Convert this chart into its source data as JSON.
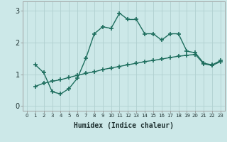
{
  "xlabel": "Humidex (Indice chaleur)",
  "bg_color": "#cce8e8",
  "line_color": "#1e6e5e",
  "grid_color": "#b0d0d0",
  "xlim": [
    -0.5,
    23.5
  ],
  "ylim": [
    -0.15,
    3.3
  ],
  "yticks": [
    0,
    1,
    2,
    3
  ],
  "xticks": [
    0,
    1,
    2,
    3,
    4,
    5,
    6,
    7,
    8,
    9,
    10,
    11,
    12,
    13,
    14,
    15,
    16,
    17,
    18,
    19,
    20,
    21,
    22,
    23
  ],
  "curve1_x": [
    1,
    2,
    3,
    4,
    5,
    6,
    7,
    8,
    9,
    10,
    11,
    12,
    13,
    14,
    15,
    16,
    17,
    18,
    19,
    20,
    21,
    22,
    23
  ],
  "curve1_y": [
    1.3,
    1.05,
    0.45,
    0.38,
    0.55,
    0.88,
    1.5,
    2.28,
    2.5,
    2.45,
    2.93,
    2.73,
    2.73,
    2.28,
    2.28,
    2.08,
    2.28,
    2.28,
    1.73,
    1.68,
    1.35,
    1.3,
    1.43
  ],
  "curve2_x": [
    1,
    2,
    3,
    4,
    5,
    6,
    7,
    8,
    9,
    10,
    11,
    12,
    13,
    14,
    15,
    16,
    17,
    18,
    19,
    20,
    21,
    22,
    23
  ],
  "curve2_y": [
    0.62,
    0.72,
    0.78,
    0.83,
    0.9,
    0.97,
    1.03,
    1.08,
    1.15,
    1.2,
    1.25,
    1.3,
    1.35,
    1.4,
    1.44,
    1.48,
    1.53,
    1.57,
    1.6,
    1.63,
    1.33,
    1.28,
    1.4
  ]
}
